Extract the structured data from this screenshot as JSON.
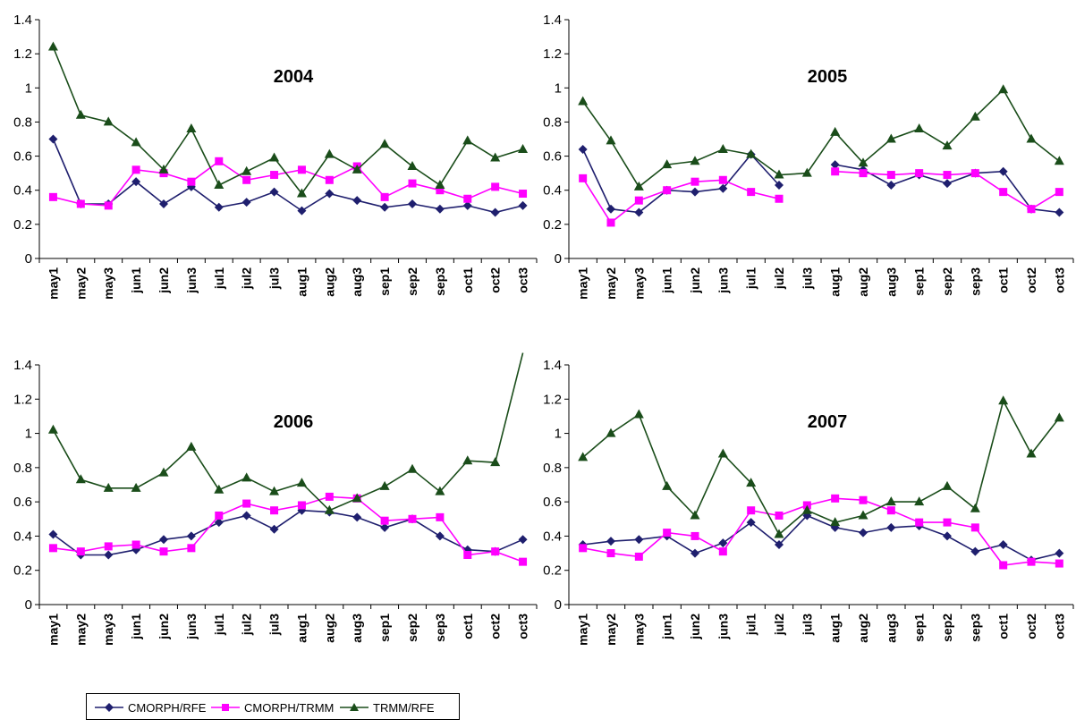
{
  "chart_data": [
    {
      "type": "line",
      "title": "2004",
      "categories": [
        "may1",
        "may2",
        "may3",
        "jun1",
        "jun2",
        "jun3",
        "jul1",
        "jul2",
        "jul3",
        "aug1",
        "aug2",
        "aug3",
        "sep1",
        "sep2",
        "sep3",
        "oct1",
        "oct2",
        "oct3"
      ],
      "ylim": [
        0,
        1.4
      ],
      "yticks": [
        "0",
        "0.2",
        "0.4",
        "0.6",
        "0.8",
        "1",
        "1.2",
        "1.4"
      ],
      "grid": false,
      "series": [
        {
          "name": "CMORPH/RFE",
          "color": "#1f1f6e",
          "marker": "diamond",
          "values": [
            0.7,
            0.32,
            0.32,
            0.45,
            0.32,
            0.42,
            0.3,
            0.33,
            0.39,
            0.28,
            0.38,
            0.34,
            0.3,
            0.32,
            0.29,
            0.31,
            0.27,
            0.31
          ]
        },
        {
          "name": "CMORPH/TRMM",
          "color": "#ff00ff",
          "marker": "square",
          "values": [
            0.36,
            0.32,
            0.31,
            0.52,
            0.5,
            0.45,
            0.57,
            0.46,
            0.49,
            0.52,
            0.46,
            0.54,
            0.36,
            0.44,
            0.4,
            0.35,
            0.42,
            0.38
          ]
        },
        {
          "name": "TRMM/RFE",
          "color": "#1a4d1a",
          "marker": "triangle",
          "values": [
            1.24,
            0.84,
            0.8,
            0.68,
            0.52,
            0.76,
            0.43,
            0.51,
            0.59,
            0.38,
            0.61,
            0.52,
            0.67,
            0.54,
            0.43,
            0.69,
            0.59,
            0.64
          ]
        }
      ]
    },
    {
      "type": "line",
      "title": "2005",
      "categories": [
        "may1",
        "may2",
        "may3",
        "jun1",
        "jun2",
        "jun3",
        "jul1",
        "jul2",
        "jul3",
        "aug1",
        "aug2",
        "aug3",
        "sep1",
        "sep2",
        "sep3",
        "oct1",
        "oct2",
        "oct3"
      ],
      "ylim": [
        0,
        1.4
      ],
      "yticks": [
        "0",
        "0.2",
        "0.4",
        "0.6",
        "0.8",
        "1",
        "1.2",
        "1.4"
      ],
      "grid": false,
      "series": [
        {
          "name": "CMORPH/RFE",
          "color": "#1f1f6e",
          "marker": "diamond",
          "values": [
            0.64,
            0.29,
            0.27,
            0.4,
            0.39,
            0.41,
            0.61,
            0.43,
            null,
            0.55,
            0.52,
            0.43,
            0.49,
            0.44,
            0.5,
            0.51,
            0.29,
            0.27
          ]
        },
        {
          "name": "CMORPH/TRMM",
          "color": "#ff00ff",
          "marker": "square",
          "values": [
            0.47,
            0.21,
            0.34,
            0.4,
            0.45,
            0.46,
            0.39,
            0.35,
            null,
            0.51,
            0.5,
            0.49,
            0.5,
            0.49,
            0.5,
            0.39,
            0.29,
            0.39
          ]
        },
        {
          "name": "TRMM/RFE",
          "color": "#1a4d1a",
          "marker": "triangle",
          "values": [
            0.92,
            0.69,
            0.42,
            0.55,
            0.57,
            0.64,
            0.61,
            0.49,
            0.5,
            0.74,
            0.56,
            0.7,
            0.76,
            0.66,
            0.83,
            0.99,
            0.7,
            0.57
          ]
        }
      ]
    },
    {
      "type": "line",
      "title": "2006",
      "categories": [
        "may1",
        "may2",
        "may3",
        "jun1",
        "jun2",
        "jun3",
        "jul1",
        "jul2",
        "jul3",
        "aug1",
        "aug2",
        "aug3",
        "sep1",
        "sep2",
        "sep3",
        "oct1",
        "oct2",
        "oct3"
      ],
      "ylim": [
        0,
        1.4
      ],
      "yticks": [
        "0",
        "0.2",
        "0.4",
        "0.6",
        "0.8",
        "1",
        "1.2",
        "1.4"
      ],
      "grid": false,
      "series": [
        {
          "name": "CMORPH/RFE",
          "color": "#1f1f6e",
          "marker": "diamond",
          "values": [
            0.41,
            0.29,
            0.29,
            0.32,
            0.38,
            0.4,
            0.48,
            0.52,
            0.44,
            0.55,
            0.54,
            0.51,
            0.45,
            0.5,
            0.4,
            0.32,
            0.31,
            0.38
          ]
        },
        {
          "name": "CMORPH/TRMM",
          "color": "#ff00ff",
          "marker": "square",
          "values": [
            0.33,
            0.31,
            0.34,
            0.35,
            0.31,
            0.33,
            0.52,
            0.59,
            0.55,
            0.58,
            0.63,
            0.62,
            0.49,
            0.5,
            0.51,
            0.29,
            0.31,
            0.25
          ]
        },
        {
          "name": "TRMM/RFE",
          "color": "#1a4d1a",
          "marker": "triangle",
          "values": [
            1.02,
            0.73,
            0.68,
            0.68,
            0.77,
            0.92,
            0.67,
            0.74,
            0.66,
            0.71,
            0.55,
            0.62,
            0.69,
            0.79,
            0.66,
            0.84,
            0.83,
            1.47
          ]
        }
      ]
    },
    {
      "type": "line",
      "title": "2007",
      "categories": [
        "may1",
        "may2",
        "may3",
        "jun1",
        "jun2",
        "jun3",
        "jul1",
        "jul2",
        "jul3",
        "aug1",
        "aug2",
        "aug3",
        "sep1",
        "sep2",
        "sep3",
        "oct1",
        "oct2",
        "oct3"
      ],
      "ylim": [
        0,
        1.4
      ],
      "yticks": [
        "0",
        "0.2",
        "0.4",
        "0.6",
        "0.8",
        "1",
        "1.2",
        "1.4"
      ],
      "grid": false,
      "series": [
        {
          "name": "CMORPH/RFE",
          "color": "#1f1f6e",
          "marker": "diamond",
          "values": [
            0.35,
            0.37,
            0.38,
            0.4,
            0.3,
            0.36,
            0.48,
            0.35,
            0.52,
            0.45,
            0.42,
            0.45,
            0.46,
            0.4,
            0.31,
            0.35,
            0.26,
            0.3
          ]
        },
        {
          "name": "CMORPH/TRMM",
          "color": "#ff00ff",
          "marker": "square",
          "values": [
            0.33,
            0.3,
            0.28,
            0.42,
            0.4,
            0.31,
            0.55,
            0.52,
            0.58,
            0.62,
            0.61,
            0.55,
            0.48,
            0.48,
            0.45,
            0.23,
            0.25,
            0.24
          ]
        },
        {
          "name": "TRMM/RFE",
          "color": "#1a4d1a",
          "marker": "triangle",
          "values": [
            0.86,
            1.0,
            1.11,
            0.69,
            0.52,
            0.88,
            0.71,
            0.41,
            0.55,
            0.48,
            0.52,
            0.6,
            0.6,
            0.69,
            0.56,
            1.19,
            0.88,
            1.09
          ]
        }
      ]
    }
  ],
  "legend": {
    "items": [
      {
        "label": "CMORPH/RFE",
        "color": "#1f1f6e",
        "marker": "diamond"
      },
      {
        "label": "CMORPH/TRMM",
        "color": "#ff00ff",
        "marker": "square"
      },
      {
        "label": "TRMM/RFE",
        "color": "#1a4d1a",
        "marker": "triangle"
      }
    ]
  }
}
